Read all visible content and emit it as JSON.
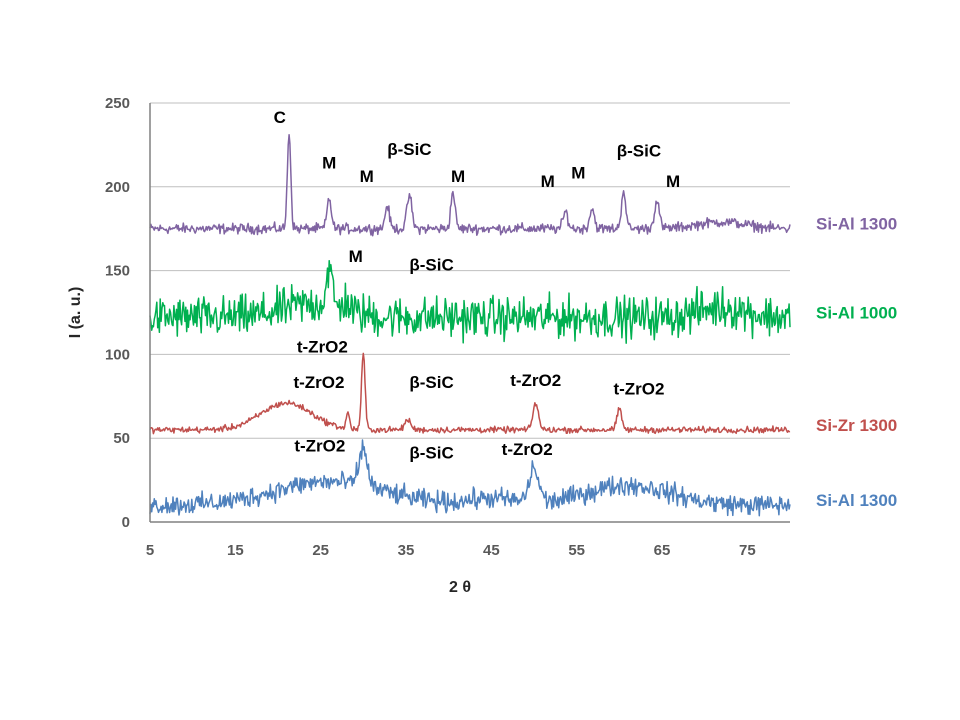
{
  "chart_data": {
    "type": "line",
    "title": "",
    "xlabel": "2 θ",
    "ylabel": "I (a. u.)",
    "xlim": [
      5,
      80
    ],
    "ylim": [
      0,
      250
    ],
    "x_ticks": [
      "5",
      "15",
      "25",
      "35",
      "45",
      "55",
      "65",
      "75"
    ],
    "y_ticks": [
      "0",
      "50",
      "100",
      "150",
      "200",
      "250"
    ],
    "grid": "horizontal",
    "legend_placement": "right",
    "series": [
      {
        "name": "Si-Al 1300",
        "color": "#8064A2",
        "baseline": 175,
        "noise": 3,
        "peaks": [
          [
            21.3,
            58,
            0.28
          ],
          [
            26.0,
            18,
            0.35
          ],
          [
            32.8,
            14,
            0.35
          ],
          [
            35.4,
            20,
            0.4
          ],
          [
            40.5,
            22,
            0.35
          ],
          [
            53.7,
            10,
            0.4
          ],
          [
            56.8,
            12,
            0.4
          ],
          [
            60.5,
            23,
            0.35
          ],
          [
            64.4,
            17,
            0.4
          ]
        ],
        "humps": [
          [
            72,
            4,
            4
          ]
        ]
      },
      {
        "name": "Si-Al 1000",
        "color": "#00B050",
        "baseline": 122,
        "noise": 12,
        "peaks": [
          [
            26.0,
            22,
            0.5
          ],
          [
            28.0,
            6,
            0.5
          ]
        ],
        "humps": [
          [
            24,
            8,
            5
          ],
          [
            72,
            6,
            4
          ]
        ]
      },
      {
        "name": "Si-Zr 1300",
        "color": "#C0504D",
        "baseline": 55,
        "noise": 1.8,
        "peaks": [
          [
            30.0,
            45,
            0.3
          ],
          [
            28.2,
            10,
            0.25
          ],
          [
            35.2,
            6,
            0.5
          ],
          [
            50.2,
            16,
            0.45
          ],
          [
            60.0,
            12,
            0.4
          ]
        ],
        "humps": [
          [
            21,
            16,
            4.2
          ]
        ]
      },
      {
        "name": "Si-Al 1300",
        "color": "#4F81BD",
        "baseline": 10,
        "noise": 6,
        "peaks": [
          [
            30.0,
            22,
            0.7
          ],
          [
            50.0,
            20,
            0.8
          ]
        ],
        "humps": [
          [
            26,
            14,
            9
          ],
          [
            61,
            12,
            7
          ],
          [
            45,
            4,
            4
          ]
        ]
      }
    ],
    "annotations": [
      {
        "text": "C",
        "x": 20.2,
        "y": 238
      },
      {
        "text": "M",
        "x": 26.0,
        "y": 211
      },
      {
        "text": "M",
        "x": 30.4,
        "y": 203
      },
      {
        "text": "β-SiC",
        "x": 35.4,
        "y": 219
      },
      {
        "text": "M",
        "x": 41.1,
        "y": 203
      },
      {
        "text": "M",
        "x": 51.6,
        "y": 200
      },
      {
        "text": "M",
        "x": 55.2,
        "y": 205
      },
      {
        "text": "β-SiC",
        "x": 62.3,
        "y": 218
      },
      {
        "text": "M",
        "x": 66.3,
        "y": 200
      },
      {
        "text": "M",
        "x": 29.1,
        "y": 155
      },
      {
        "text": "β-SiC",
        "x": 38.0,
        "y": 150
      },
      {
        "text": "t-ZrO2",
        "x": 25.2,
        "y": 101
      },
      {
        "text": "t-ZrO2",
        "x": 24.8,
        "y": 80
      },
      {
        "text": "β-SiC",
        "x": 38.0,
        "y": 80
      },
      {
        "text": "t-ZrO2",
        "x": 50.2,
        "y": 81
      },
      {
        "text": "t-ZrO2",
        "x": 62.3,
        "y": 76
      },
      {
        "text": "t-ZrO2",
        "x": 24.9,
        "y": 42
      },
      {
        "text": "β-SiC",
        "x": 38.0,
        "y": 38
      },
      {
        "text": "t-ZrO2",
        "x": 49.2,
        "y": 40
      }
    ]
  }
}
